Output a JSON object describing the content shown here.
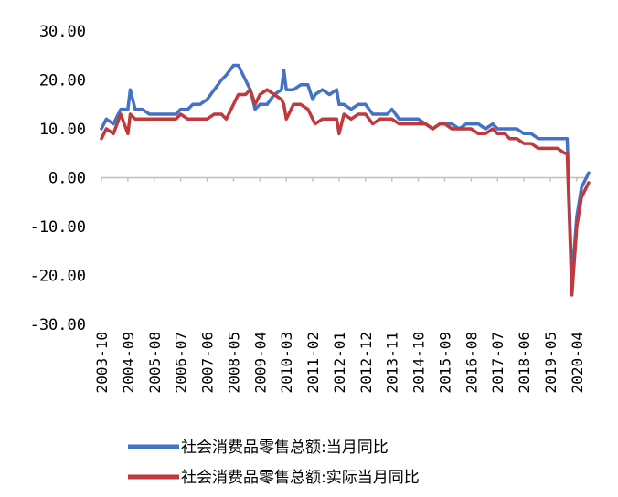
{
  "chart_data": {
    "type": "line",
    "title": "",
    "xlabel": "",
    "ylabel": "",
    "ylim": [
      -30,
      30
    ],
    "y_ticks": [
      "30.00",
      "20.00",
      "10.00",
      "0.00",
      "-10.00",
      "-20.00",
      "-30.00"
    ],
    "y_tick_values": [
      30,
      20,
      10,
      0,
      -10,
      -20,
      -30
    ],
    "x_ticks": [
      "2003-10",
      "2004-09",
      "2005-08",
      "2006-07",
      "2007-06",
      "2008-05",
      "2009-04",
      "2010-03",
      "2011-02",
      "2012-01",
      "2012-12",
      "2013-11",
      "2014-10",
      "2015-09",
      "2016-08",
      "2017-07",
      "2018-06",
      "2019-05",
      "2020-04"
    ],
    "x_range": [
      "2003-10",
      "2020-09"
    ],
    "grid": false,
    "legend_position": "bottom",
    "series": [
      {
        "name": "社会消费品零售总额:当月同比",
        "color": "#4472C4",
        "points": [
          [
            "2003-10",
            10
          ],
          [
            "2003-12",
            12
          ],
          [
            "2004-03",
            11
          ],
          [
            "2004-06",
            14
          ],
          [
            "2004-09",
            14
          ],
          [
            "2004-10",
            18
          ],
          [
            "2004-12",
            14
          ],
          [
            "2005-03",
            14
          ],
          [
            "2005-06",
            13
          ],
          [
            "2005-08",
            13
          ],
          [
            "2005-11",
            13
          ],
          [
            "2006-02",
            13
          ],
          [
            "2006-05",
            13
          ],
          [
            "2006-07",
            14
          ],
          [
            "2006-10",
            14
          ],
          [
            "2006-12",
            15
          ],
          [
            "2007-03",
            15
          ],
          [
            "2007-06",
            16
          ],
          [
            "2007-09",
            18
          ],
          [
            "2007-12",
            20
          ],
          [
            "2008-02",
            21
          ],
          [
            "2008-05",
            23
          ],
          [
            "2008-07",
            23
          ],
          [
            "2008-10",
            20
          ],
          [
            "2008-12",
            18
          ],
          [
            "2009-02",
            14
          ],
          [
            "2009-04",
            15
          ],
          [
            "2009-07",
            15
          ],
          [
            "2009-10",
            17
          ],
          [
            "2010-01",
            18
          ],
          [
            "2010-02",
            22
          ],
          [
            "2010-03",
            18
          ],
          [
            "2010-06",
            18
          ],
          [
            "2010-09",
            19
          ],
          [
            "2010-12",
            19
          ],
          [
            "2011-02",
            16
          ],
          [
            "2011-03",
            17
          ],
          [
            "2011-06",
            18
          ],
          [
            "2011-09",
            17
          ],
          [
            "2011-12",
            18
          ],
          [
            "2012-01",
            15
          ],
          [
            "2012-03",
            15
          ],
          [
            "2012-06",
            14
          ],
          [
            "2012-09",
            15
          ],
          [
            "2012-12",
            15
          ],
          [
            "2013-03",
            13
          ],
          [
            "2013-06",
            13
          ],
          [
            "2013-09",
            13
          ],
          [
            "2013-11",
            14
          ],
          [
            "2014-02",
            12
          ],
          [
            "2014-05",
            12
          ],
          [
            "2014-08",
            12
          ],
          [
            "2014-10",
            12
          ],
          [
            "2015-01",
            11
          ],
          [
            "2015-04",
            10
          ],
          [
            "2015-07",
            11
          ],
          [
            "2015-09",
            11
          ],
          [
            "2015-12",
            11
          ],
          [
            "2016-03",
            10
          ],
          [
            "2016-06",
            11
          ],
          [
            "2016-08",
            11
          ],
          [
            "2016-11",
            11
          ],
          [
            "2017-02",
            10
          ],
          [
            "2017-05",
            11
          ],
          [
            "2017-07",
            10
          ],
          [
            "2017-10",
            10
          ],
          [
            "2017-12",
            10
          ],
          [
            "2018-03",
            10
          ],
          [
            "2018-06",
            9
          ],
          [
            "2018-09",
            9
          ],
          [
            "2018-12",
            8
          ],
          [
            "2019-03",
            8
          ],
          [
            "2019-05",
            8
          ],
          [
            "2019-08",
            8
          ],
          [
            "2019-11",
            8
          ],
          [
            "2019-12",
            8
          ],
          [
            "2020-02",
            -21
          ],
          [
            "2020-04",
            -8
          ],
          [
            "2020-06",
            -2
          ],
          [
            "2020-08",
            0
          ],
          [
            "2020-09",
            1
          ]
        ]
      },
      {
        "name": "社会消费品零售总额:实际当月同比",
        "color": "#C0393B",
        "points": [
          [
            "2003-10",
            8
          ],
          [
            "2003-12",
            10
          ],
          [
            "2004-03",
            9
          ],
          [
            "2004-06",
            13
          ],
          [
            "2004-09",
            9
          ],
          [
            "2004-10",
            13
          ],
          [
            "2004-12",
            12
          ],
          [
            "2005-03",
            12
          ],
          [
            "2005-06",
            12
          ],
          [
            "2005-08",
            12
          ],
          [
            "2005-11",
            12
          ],
          [
            "2006-02",
            12
          ],
          [
            "2006-05",
            12
          ],
          [
            "2006-07",
            13
          ],
          [
            "2006-10",
            12
          ],
          [
            "2006-12",
            12
          ],
          [
            "2007-03",
            12
          ],
          [
            "2007-06",
            12
          ],
          [
            "2007-09",
            13
          ],
          [
            "2007-12",
            13
          ],
          [
            "2008-02",
            12
          ],
          [
            "2008-05",
            15
          ],
          [
            "2008-07",
            17
          ],
          [
            "2008-10",
            17
          ],
          [
            "2008-12",
            18
          ],
          [
            "2009-02",
            15
          ],
          [
            "2009-04",
            17
          ],
          [
            "2009-07",
            18
          ],
          [
            "2009-10",
            17
          ],
          [
            "2010-01",
            16
          ],
          [
            "2010-02",
            15
          ],
          [
            "2010-03",
            12
          ],
          [
            "2010-06",
            15
          ],
          [
            "2010-09",
            15
          ],
          [
            "2010-12",
            14
          ],
          [
            "2011-02",
            12
          ],
          [
            "2011-03",
            11
          ],
          [
            "2011-06",
            12
          ],
          [
            "2011-09",
            12
          ],
          [
            "2011-12",
            12
          ],
          [
            "2012-01",
            9
          ],
          [
            "2012-03",
            13
          ],
          [
            "2012-06",
            12
          ],
          [
            "2012-09",
            13
          ],
          [
            "2012-12",
            13
          ],
          [
            "2013-03",
            11
          ],
          [
            "2013-06",
            12
          ],
          [
            "2013-09",
            12
          ],
          [
            "2013-11",
            12
          ],
          [
            "2014-02",
            11
          ],
          [
            "2014-05",
            11
          ],
          [
            "2014-08",
            11
          ],
          [
            "2014-10",
            11
          ],
          [
            "2015-01",
            11
          ],
          [
            "2015-04",
            10
          ],
          [
            "2015-07",
            11
          ],
          [
            "2015-09",
            11
          ],
          [
            "2015-12",
            10
          ],
          [
            "2016-03",
            10
          ],
          [
            "2016-06",
            10
          ],
          [
            "2016-08",
            10
          ],
          [
            "2016-11",
            9
          ],
          [
            "2017-02",
            9
          ],
          [
            "2017-05",
            10
          ],
          [
            "2017-07",
            9
          ],
          [
            "2017-10",
            9
          ],
          [
            "2017-12",
            8
          ],
          [
            "2018-03",
            8
          ],
          [
            "2018-06",
            7
          ],
          [
            "2018-09",
            7
          ],
          [
            "2018-12",
            6
          ],
          [
            "2019-03",
            6
          ],
          [
            "2019-05",
            6
          ],
          [
            "2019-08",
            6
          ],
          [
            "2019-11",
            5
          ],
          [
            "2019-12",
            5
          ],
          [
            "2020-02",
            -24
          ],
          [
            "2020-04",
            -10
          ],
          [
            "2020-06",
            -4
          ],
          [
            "2020-08",
            -2
          ],
          [
            "2020-09",
            -1
          ]
        ]
      }
    ]
  }
}
